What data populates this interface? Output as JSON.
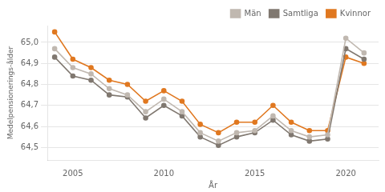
{
  "chart_data": {
    "type": "line",
    "x": [
      2004,
      2005,
      2006,
      2007,
      2008,
      2009,
      2010,
      2011,
      2012,
      2013,
      2014,
      2015,
      2016,
      2017,
      2018,
      2019,
      2020,
      2021
    ],
    "series": [
      {
        "name": "Män",
        "color": "#C0B8B0",
        "values": [
          64.97,
          64.88,
          64.85,
          64.78,
          64.75,
          64.67,
          64.73,
          64.67,
          64.57,
          64.53,
          64.57,
          64.58,
          64.65,
          64.58,
          64.55,
          64.56,
          65.02,
          64.95
        ]
      },
      {
        "name": "Samtliga",
        "color": "#807870",
        "values": [
          64.93,
          64.84,
          64.82,
          64.75,
          64.74,
          64.64,
          64.7,
          64.65,
          64.55,
          64.51,
          64.55,
          64.57,
          64.63,
          64.56,
          64.53,
          64.54,
          64.97,
          64.92
        ]
      },
      {
        "name": "Kvinnor",
        "color": "#E07820",
        "values": [
          65.05,
          64.92,
          64.88,
          64.82,
          64.8,
          64.72,
          64.77,
          64.72,
          64.61,
          64.57,
          64.62,
          64.62,
          64.7,
          64.62,
          64.58,
          64.58,
          64.93,
          64.9
        ]
      }
    ],
    "xlabel": "År",
    "ylabel": "Medelpensionerings-ålder",
    "xlim": [
      2003.6,
      2021.8
    ],
    "xticks": [
      2005,
      2010,
      2015,
      2020
    ],
    "ylim": [
      64.44,
      65.08
    ],
    "yticks": [
      {
        "value": 64.5,
        "label": "64,5"
      },
      {
        "value": 64.6,
        "label": "64,6"
      },
      {
        "value": 64.7,
        "label": "64,7"
      },
      {
        "value": 64.8,
        "label": "64,8"
      },
      {
        "value": 64.9,
        "label": "64,9"
      },
      {
        "value": 65.0,
        "label": "65,0"
      }
    ],
    "grid": "y",
    "legend": "upper right",
    "marker": "circle"
  }
}
